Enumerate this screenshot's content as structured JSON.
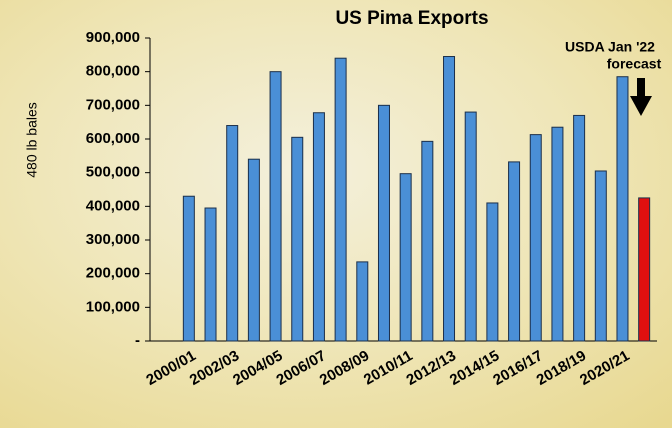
{
  "chart_data": {
    "type": "bar",
    "title": "US Pima Exports",
    "y_label": "480 lb bales",
    "categories": [
      "2000/01",
      null,
      "2002/03",
      null,
      "2004/05",
      null,
      "2006/07",
      null,
      "2008/09",
      null,
      "2010/11",
      null,
      "2012/13",
      null,
      "2014/15",
      null,
      "2016/17",
      null,
      "2018/19",
      null,
      "2020/21",
      null
    ],
    "values": [
      430000,
      395000,
      640000,
      540000,
      800000,
      605000,
      678000,
      840000,
      235000,
      700000,
      497000,
      593000,
      845000,
      680000,
      410000,
      532000,
      613000,
      635000,
      670000,
      505000,
      785000,
      425000
    ],
    "colors": [
      "#4a8fd6",
      "#4a8fd6",
      "#4a8fd6",
      "#4a8fd6",
      "#4a8fd6",
      "#4a8fd6",
      "#4a8fd6",
      "#4a8fd6",
      "#4a8fd6",
      "#4a8fd6",
      "#4a8fd6",
      "#4a8fd6",
      "#4a8fd6",
      "#4a8fd6",
      "#4a8fd6",
      "#4a8fd6",
      "#4a8fd6",
      "#4a8fd6",
      "#4a8fd6",
      "#4a8fd6",
      "#4a8fd6",
      "#e01010"
    ],
    "ylim": [
      0,
      900000
    ],
    "yticks": [
      {
        "value": 0,
        "label": "-"
      },
      {
        "value": 100000,
        "label": "100,000"
      },
      {
        "value": 200000,
        "label": "200,000"
      },
      {
        "value": 300000,
        "label": "300,000"
      },
      {
        "value": 400000,
        "label": "400,000"
      },
      {
        "value": 500000,
        "label": "500,000"
      },
      {
        "value": 600000,
        "label": "600,000"
      },
      {
        "value": 700000,
        "label": "700,000"
      },
      {
        "value": 800000,
        "label": "800,000"
      },
      {
        "value": 900000,
        "label": "900,000"
      }
    ],
    "annotation": [
      "USDA Jan '22",
      "forecast"
    ]
  }
}
